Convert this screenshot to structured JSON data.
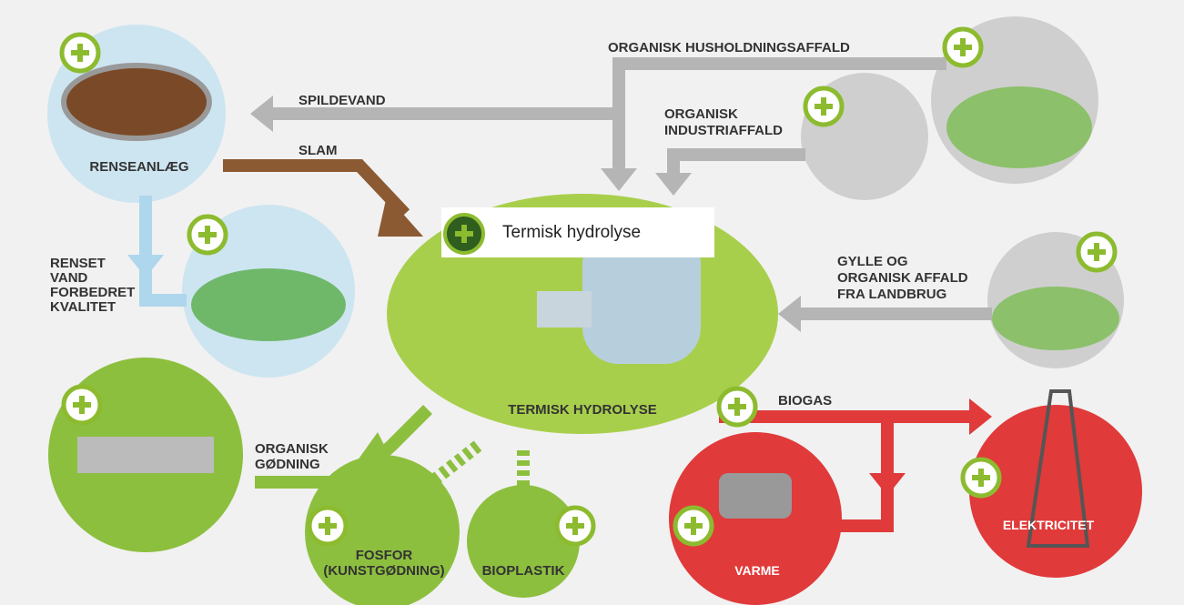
{
  "labels": {
    "household": "ORGANISK HUSHOLDNINGSAFFALD",
    "wastewater": "SPILDEVAND",
    "sludge": "SLAM",
    "industry": [
      "ORGANISK",
      "INDUSTRIAFFALD"
    ],
    "treatment": "RENSEANLÆG",
    "clean_water": [
      "RENSET",
      "VAND",
      "FORBEDRET",
      "KVALITET"
    ],
    "farm": [
      "GYLLE OG",
      "ORGANISK AFFALD",
      "FRA LANDBRUG"
    ],
    "hydrolysis": "TERMISK HYDROLYSE",
    "biogas": "BIOGAS",
    "fertilizer": [
      "ORGANISK",
      "GØDNING"
    ],
    "phosphorus": [
      "FOSFOR",
      "(KUNSTGØDNING)"
    ],
    "bioplastic": "BIOPLASTIK",
    "heat": "VARME",
    "electricity": "ELEKTRICITET"
  },
  "tooltip": "Termisk hydrolyse"
}
